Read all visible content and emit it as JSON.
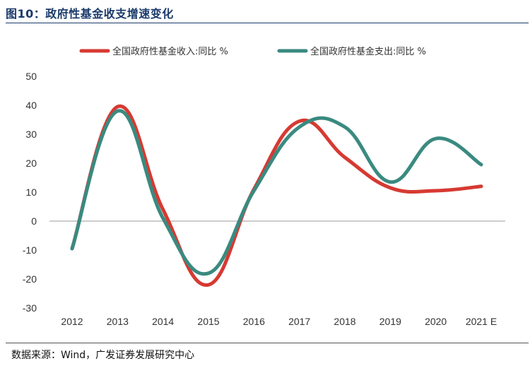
{
  "header": {
    "title": "图10：政府性基金收支增速变化"
  },
  "footer": {
    "source": "数据来源：Wind，广发证券发展研究中心"
  },
  "colors": {
    "income": "#d63a32",
    "expense": "#3a8a80",
    "axis": "#999999",
    "title": "#1a3a6b"
  },
  "chart_data": {
    "type": "line",
    "title": "",
    "xlabel": "",
    "ylabel": "",
    "categories": [
      "2012",
      "2013",
      "2014",
      "2015",
      "2016",
      "2017",
      "2018",
      "2019",
      "2020",
      "2021 E"
    ],
    "ylim": [
      -30,
      50
    ],
    "yticks": [
      "50",
      "40",
      "30",
      "20",
      "10",
      "0",
      "-10",
      "-20",
      "-30"
    ],
    "ytick_values": [
      50,
      40,
      30,
      20,
      10,
      0,
      -10,
      -20,
      -30
    ],
    "legend_position": "top",
    "smooth": true,
    "series": [
      {
        "name": "全国政府性基金收入:同比 %",
        "color_key": "income",
        "values": [
          -9.5,
          39.5,
          4,
          -22,
          11,
          34.5,
          22,
          11.5,
          10.5,
          12
        ]
      },
      {
        "name": "全国政府性基金支出:同比 %",
        "color_key": "expense",
        "values": [
          -9.5,
          38,
          1,
          -18,
          10.5,
          32.5,
          32.5,
          13.5,
          28.5,
          19.5
        ]
      }
    ]
  }
}
